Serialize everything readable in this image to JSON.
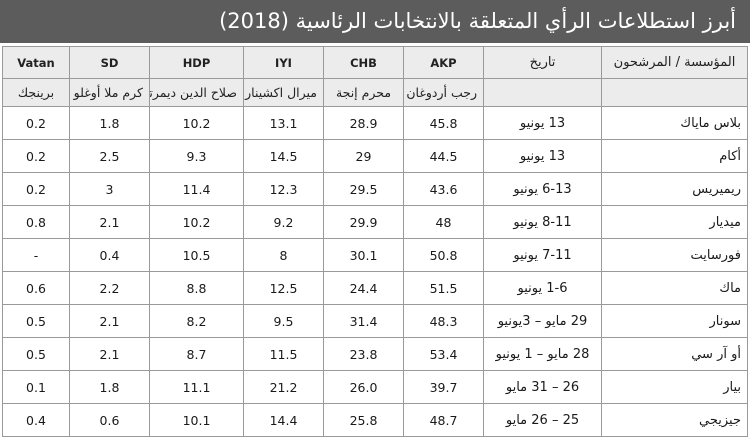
{
  "title": "أبرز استطلاعات الرأي المتعلقة بالانتخابات الرئاسية (2018)",
  "headers": {
    "pollster": "المؤسسة / المرشحون",
    "date": "تاريخ",
    "parties": [
      "AKP",
      "CHB",
      "IYI",
      "HDP",
      "SD",
      "Vatan"
    ]
  },
  "candidates": [
    "رجب أردوغان",
    "محرم إنجة",
    "ميرال اكشينار",
    "صلاح الدين ديمرتاش",
    "كرم ملا أوغلو",
    "برينجك"
  ],
  "rows": [
    {
      "pollster": "بلاس ماياك",
      "date": "13 يونيو",
      "values": [
        "45.8",
        "28.9",
        "13.1",
        "10.2",
        "1.8",
        "0.2"
      ]
    },
    {
      "pollster": "أكام",
      "date": "13 يونيو",
      "values": [
        "44.5",
        "29",
        "14.5",
        "9.3",
        "2.5",
        "0.2"
      ]
    },
    {
      "pollster": "ريميريس",
      "date": "6-13 يونيو",
      "values": [
        "43.6",
        "29.5",
        "12.3",
        "11.4",
        "3",
        "0.2"
      ]
    },
    {
      "pollster": "ميديار",
      "date": "8-11 يونيو",
      "values": [
        "48",
        "29.9",
        "9.2",
        "10.2",
        "2.1",
        "0.8"
      ]
    },
    {
      "pollster": "فورسايت",
      "date": "7-11 يونيو",
      "values": [
        "50.8",
        "30.1",
        "8",
        "10.5",
        "0.4",
        "-"
      ]
    },
    {
      "pollster": "ماك",
      "date": "1-6 يونيو",
      "values": [
        "51.5",
        "24.4",
        "12.5",
        "8.8",
        "2.2",
        "0.6"
      ]
    },
    {
      "pollster": "سونار",
      "date": "29 مايو – 3يونيو",
      "values": [
        "48.3",
        "31.4",
        "9.5",
        "8.2",
        "2.1",
        "0.5"
      ]
    },
    {
      "pollster": "أو آر سي",
      "date": "28 مايو – 1 يونيو",
      "values": [
        "53.4",
        "23.8",
        "11.5",
        "8.7",
        "2.1",
        "0.5"
      ]
    },
    {
      "pollster": "بيار",
      "date": "26 – 31 مايو",
      "values": [
        "39.7",
        "26.0",
        "21.2",
        "11.1",
        "1.8",
        "0.1"
      ]
    },
    {
      "pollster": "جيزيجي",
      "date": "25 – 26 مايو",
      "values": [
        "48.7",
        "25.8",
        "14.4",
        "10.1",
        "0.6",
        "0.4"
      ]
    }
  ],
  "colors": {
    "title_bar": "#5c5c5c",
    "header_bg": "#ececec",
    "border": "#9a9a9a"
  }
}
